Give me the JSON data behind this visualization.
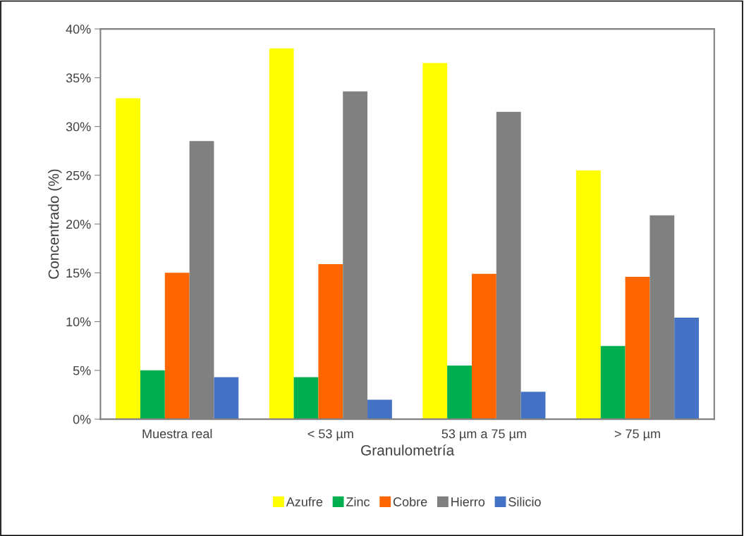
{
  "chart_data": {
    "type": "bar",
    "xlabel": "Granulometría",
    "ylabel": "Concentrado (%)",
    "categories": [
      "Muestra real",
      "< 53 µm",
      "53 µm a 75 µm",
      "> 75 µm"
    ],
    "series": [
      {
        "name": "Azufre",
        "color": "#ffff00",
        "values": [
          32.9,
          38.0,
          36.5,
          25.5
        ]
      },
      {
        "name": "Zinc",
        "color": "#00b050",
        "values": [
          5.0,
          4.3,
          5.5,
          7.5
        ]
      },
      {
        "name": "Cobre",
        "color": "#ff6600",
        "values": [
          15.0,
          15.9,
          14.9,
          14.6
        ]
      },
      {
        "name": "Hierro",
        "color": "#808080",
        "values": [
          28.5,
          33.6,
          31.5,
          20.9
        ]
      },
      {
        "name": "Silicio",
        "color": "#4472c4",
        "values": [
          4.3,
          2.0,
          2.8,
          10.4
        ]
      }
    ],
    "ylim": [
      0,
      40
    ],
    "yticks": [
      {
        "value": 0,
        "label": "0%"
      },
      {
        "value": 5,
        "label": "5%"
      },
      {
        "value": 10,
        "label": "10%"
      },
      {
        "value": 15,
        "label": "15%"
      },
      {
        "value": 20,
        "label": "20%"
      },
      {
        "value": 25,
        "label": "25%"
      },
      {
        "value": 30,
        "label": "30%"
      },
      {
        "value": 35,
        "label": "35%"
      },
      {
        "value": 40,
        "label": "40%"
      }
    ],
    "legend": "bottom",
    "grid": false
  }
}
